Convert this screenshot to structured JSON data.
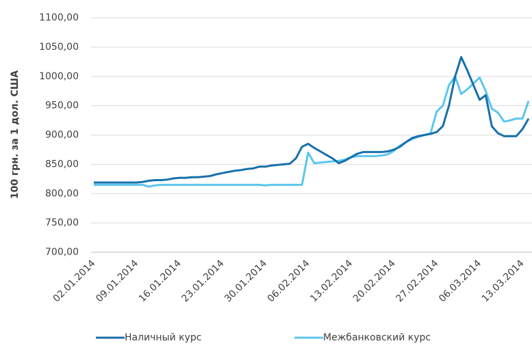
{
  "chart_data": {
    "type": "line",
    "y_label": "100 грн. за 1 дол. США",
    "x": [
      "02.01.2014",
      "03.01.2014",
      "04.01.2014",
      "05.01.2014",
      "06.01.2014",
      "07.01.2014",
      "08.01.2014",
      "09.01.2014",
      "10.01.2014",
      "11.01.2014",
      "12.01.2014",
      "13.01.2014",
      "14.01.2014",
      "15.01.2014",
      "16.01.2014",
      "17.01.2014",
      "18.01.2014",
      "19.01.2014",
      "20.01.2014",
      "21.01.2014",
      "22.01.2014",
      "23.01.2014",
      "24.01.2014",
      "25.01.2014",
      "26.01.2014",
      "27.01.2014",
      "28.01.2014",
      "29.01.2014",
      "30.01.2014",
      "31.01.2014",
      "01.02.2014",
      "02.02.2014",
      "03.02.2014",
      "04.02.2014",
      "05.02.2014",
      "06.02.2014",
      "07.02.2014",
      "08.02.2014",
      "09.02.2014",
      "10.02.2014",
      "11.02.2014",
      "12.02.2014",
      "13.02.2014",
      "14.02.2014",
      "15.02.2014",
      "16.02.2014",
      "17.02.2014",
      "18.02.2014",
      "19.02.2014",
      "20.02.2014",
      "21.02.2014",
      "22.02.2014",
      "23.02.2014",
      "24.02.2014",
      "25.02.2014",
      "26.02.2014",
      "27.02.2014",
      "28.02.2014",
      "01.03.2014",
      "02.03.2014",
      "03.03.2014",
      "04.03.2014",
      "05.03.2014",
      "06.03.2014",
      "07.03.2014",
      "08.03.2014",
      "09.03.2014",
      "10.03.2014",
      "11.03.2014",
      "12.03.2014",
      "13.03.2014",
      "14.03.2014"
    ],
    "xticks": [
      "02.01.2014",
      "09.01.2014",
      "16.01.2014",
      "23.01.2014",
      "30.01.2014",
      "06.02.2014",
      "13.02.2014",
      "20.02.2014",
      "27.02.2014",
      "06.03.2014",
      "13.03.2014"
    ],
    "series": [
      {
        "name": "Наличный курс",
        "color": "#1670ab",
        "values": [
          819,
          819,
          819,
          819,
          819,
          819,
          819,
          819,
          820,
          822,
          823,
          823,
          824,
          826,
          827,
          827,
          828,
          828,
          829,
          830,
          833,
          835,
          837,
          839,
          840,
          842,
          843,
          846,
          846,
          848,
          849,
          850,
          851,
          860,
          880,
          885,
          878,
          872,
          866,
          860,
          852,
          856,
          862,
          868,
          871,
          871,
          871,
          871,
          872,
          875,
          880,
          888,
          895,
          898,
          900,
          902,
          905,
          915,
          950,
          1000,
          1033,
          1010,
          985,
          960,
          968,
          915,
          903,
          898,
          898,
          898,
          910,
          928
        ]
      },
      {
        "name": "Межбанковский курс",
        "color": "#5cc6ef",
        "values": [
          815,
          815,
          815,
          815,
          815,
          815,
          815,
          815,
          815,
          812,
          814,
          815,
          815,
          815,
          815,
          815,
          815,
          815,
          815,
          815,
          815,
          815,
          815,
          815,
          815,
          815,
          815,
          815,
          814,
          815,
          815,
          815,
          815,
          815,
          815,
          870,
          852,
          853,
          854,
          855,
          856,
          858,
          862,
          864,
          864,
          864,
          864,
          865,
          867,
          873,
          882,
          888,
          893,
          897,
          900,
          903,
          940,
          950,
          985,
          1000,
          970,
          978,
          988,
          998,
          975,
          945,
          938,
          923,
          925,
          928,
          928,
          958
        ]
      }
    ],
    "ylim": [
      700,
      1100
    ],
    "yticks": [
      {
        "value": 700,
        "label": "700,00"
      },
      {
        "value": 750,
        "label": "750,00"
      },
      {
        "value": 800,
        "label": "800,00"
      },
      {
        "value": 850,
        "label": "850,00"
      },
      {
        "value": 900,
        "label": "900,00"
      },
      {
        "value": 950,
        "label": "950,00"
      },
      {
        "value": 1000,
        "label": "1000,00"
      },
      {
        "value": 1050,
        "label": "1050,00"
      },
      {
        "value": 1100,
        "label": "1100,00"
      }
    ],
    "grid": true,
    "legend": "bottom"
  }
}
